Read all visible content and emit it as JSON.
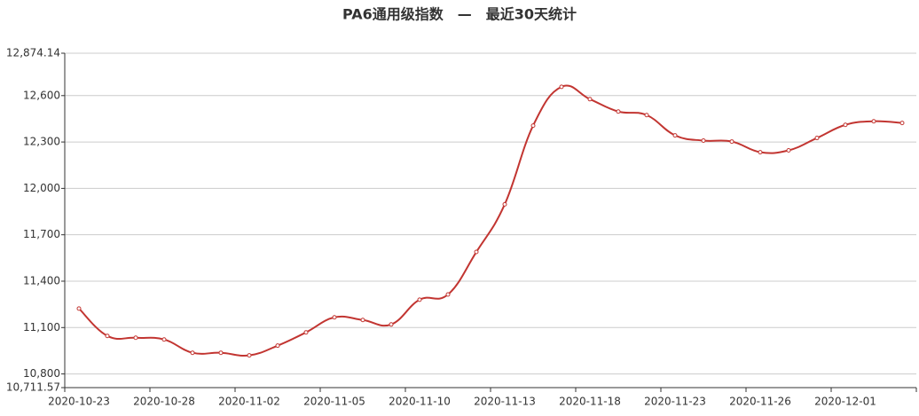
{
  "chart_data": {
    "type": "line",
    "title": "PA6通用级指数　—　最近30天统计",
    "categories": [
      "2020-10-23",
      null,
      null,
      "2020-10-28",
      null,
      null,
      "2020-11-02",
      null,
      null,
      "2020-11-05",
      null,
      null,
      "2020-11-10",
      null,
      null,
      "2020-11-13",
      null,
      null,
      "2020-11-18",
      null,
      null,
      "2020-11-23",
      null,
      null,
      "2020-11-26",
      null,
      null,
      "2020-12-01",
      null,
      null
    ],
    "series": [
      {
        "name": "PA6通用级指数",
        "color": "#c23531",
        "values": [
          11223,
          11046,
          11034,
          11023,
          10937,
          10937,
          10920,
          10983,
          11069,
          11166,
          11149,
          11120,
          11280,
          11314,
          11589,
          11897,
          12406,
          12657,
          12577,
          12497,
          12474,
          12343,
          12309,
          12303,
          12234,
          12246,
          12326,
          12411,
          12434,
          12423
        ]
      }
    ],
    "ylim": [
      10711.57,
      12874.14
    ],
    "yticks": [
      {
        "value": 10711.57,
        "label": "10,711.57"
      },
      {
        "value": 10800,
        "label": "10,800"
      },
      {
        "value": 11100,
        "label": "11,100"
      },
      {
        "value": 11400,
        "label": "11,400"
      },
      {
        "value": 11700,
        "label": "11,700"
      },
      {
        "value": 12000,
        "label": "12,000"
      },
      {
        "value": 12300,
        "label": "12,300"
      },
      {
        "value": 12600,
        "label": "12,600"
      },
      {
        "value": 12874.14,
        "label": "12,874.14"
      }
    ],
    "grid": true
  }
}
